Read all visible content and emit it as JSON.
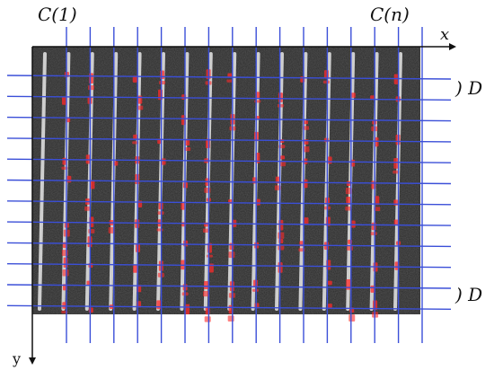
{
  "labels": {
    "c_first": "C(1)",
    "c_last": "C(n)",
    "x_axis": "x",
    "y_axis": "y",
    "d_top": ") D",
    "d_bottom": ") D"
  },
  "grid": {
    "vertical_line_count": 16,
    "horizontal_line_count": 12,
    "line_color": "#3b4fd8",
    "marker_color": "#ff2a2a",
    "image_background": "#2a2a2a",
    "stripe_color": "#e8e8e8"
  }
}
